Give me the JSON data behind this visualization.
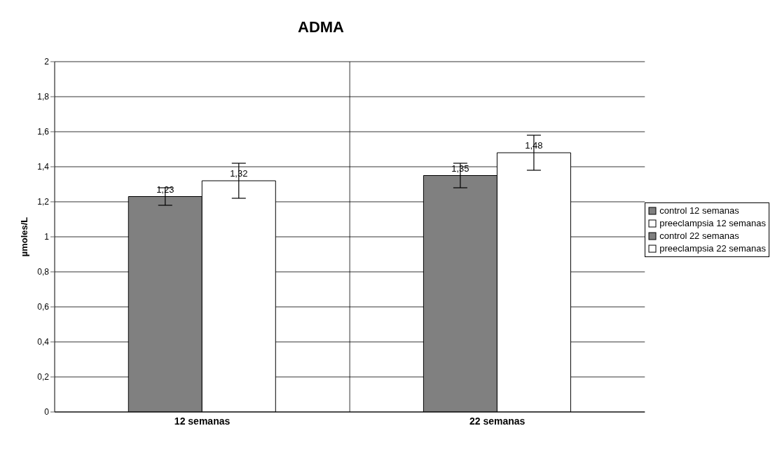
{
  "chart_data": {
    "type": "bar",
    "title": "ADMA",
    "ylabel": "µmoles/L",
    "categories": [
      "12 semanas",
      "22 semanas"
    ],
    "series": [
      {
        "name": "control 12 semanas",
        "color": "#808080",
        "values": [
          1.23,
          null
        ],
        "value_labels": [
          "1,23",
          null
        ],
        "errors": [
          0.05,
          null
        ]
      },
      {
        "name": "preeclampsia 12 semanas",
        "color": "#ffffff",
        "values": [
          1.32,
          null
        ],
        "value_labels": [
          "1,32",
          null
        ],
        "errors": [
          0.1,
          null
        ]
      },
      {
        "name": "control 22 semanas",
        "color": "#808080",
        "values": [
          null,
          1.35
        ],
        "value_labels": [
          null,
          "1,35"
        ],
        "errors": [
          null,
          0.07
        ]
      },
      {
        "name": "preeclampsia 22 semanas",
        "color": "#ffffff",
        "values": [
          null,
          1.48
        ],
        "value_labels": [
          null,
          "1,48"
        ],
        "errors": [
          null,
          0.1
        ]
      }
    ],
    "ylim": [
      0,
      2
    ],
    "yticks": [
      0,
      {
        "value": 0.2,
        "label": "0,2"
      },
      {
        "value": 0.4,
        "label": "0,4"
      },
      {
        "value": 0.6,
        "label": "0,6"
      },
      {
        "value": 0.8,
        "label": "0,8"
      },
      1,
      {
        "value": 1.2,
        "label": "1,2"
      },
      {
        "value": 1.4,
        "label": "1,4"
      },
      {
        "value": 1.6,
        "label": "1,6"
      },
      {
        "value": 1.8,
        "label": "1,8"
      },
      2
    ],
    "grid": true,
    "legend": "right"
  }
}
